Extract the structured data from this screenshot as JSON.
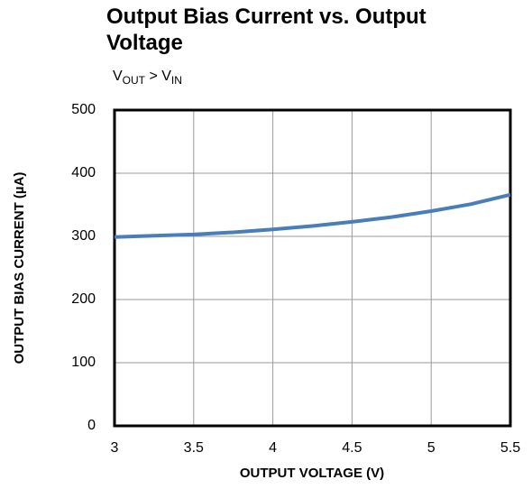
{
  "chart_data": {
    "type": "line",
    "title": "Output Bias Current vs. Output Voltage",
    "subtitle": [
      "V",
      "OUT",
      " > ",
      "V",
      "IN"
    ],
    "xlabel": "OUTPUT VOLTAGE (V)",
    "ylabel": "OUTPUT BIAS CURRENT (µA)",
    "x": [
      3,
      3.25,
      3.5,
      3.75,
      4,
      4.25,
      4.5,
      4.75,
      5,
      5.25,
      5.5
    ],
    "series": [
      {
        "name": "Output Bias Current",
        "color": "#4a7ebb",
        "values": [
          299,
          301,
          303,
          306.5,
          311,
          316.5,
          323,
          330.5,
          340,
          351,
          366
        ]
      }
    ],
    "xlim": [
      3,
      5.5
    ],
    "xticks": [
      3,
      3.5,
      4,
      4.5,
      5,
      5.5
    ],
    "ylim": [
      0,
      500
    ],
    "yticks": [
      0,
      100,
      200,
      300,
      400,
      500
    ],
    "grid": true
  }
}
